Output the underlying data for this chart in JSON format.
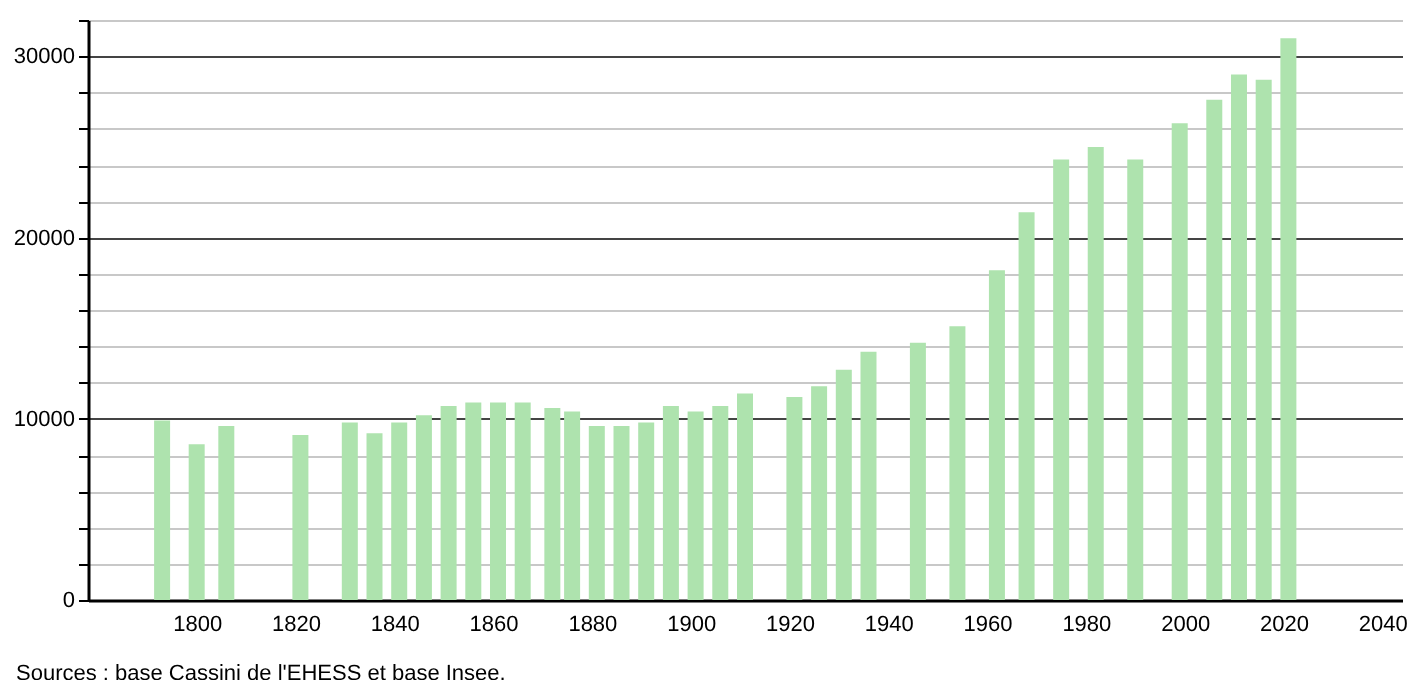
{
  "chart_data": {
    "type": "bar",
    "x": [
      1793,
      1800,
      1806,
      1821,
      1831,
      1836,
      1841,
      1846,
      1851,
      1856,
      1861,
      1866,
      1872,
      1876,
      1881,
      1886,
      1891,
      1896,
      1901,
      1906,
      1911,
      1921,
      1926,
      1931,
      1936,
      1946,
      1954,
      1962,
      1968,
      1975,
      1982,
      1990,
      1999,
      2006,
      2011,
      2016,
      2021
    ],
    "values": [
      9900,
      8600,
      9600,
      9100,
      9800,
      9200,
      9800,
      10200,
      10700,
      10900,
      10900,
      10900,
      10600,
      10400,
      9600,
      9600,
      9800,
      10700,
      10400,
      10700,
      11400,
      11200,
      11800,
      12700,
      13700,
      14200,
      15100,
      18200,
      21400,
      24300,
      25000,
      24300,
      26300,
      27600,
      29000,
      28700,
      31000
    ],
    "color": "#aee3ae",
    "xlim": [
      1778,
      2044
    ],
    "xticks": [
      1800,
      1820,
      1840,
      1860,
      1880,
      1900,
      1920,
      1940,
      1960,
      1980,
      2000,
      2020,
      2040
    ],
    "ylim": [
      0,
      32000
    ],
    "yticks": [
      0,
      {
        "value": 2000,
        "label": null
      },
      {
        "value": 4000,
        "label": null
      },
      {
        "value": 6000,
        "label": null
      },
      {
        "value": 8000,
        "label": null
      },
      10000,
      {
        "value": 12000,
        "label": null
      },
      {
        "value": 14000,
        "label": null
      },
      {
        "value": 16000,
        "label": null
      },
      {
        "value": 18000,
        "label": null
      },
      20000,
      {
        "value": 22000,
        "label": null
      },
      {
        "value": 24000,
        "label": null
      },
      {
        "value": 26000,
        "label": null
      },
      {
        "value": 28000,
        "label": null
      },
      30000,
      {
        "value": 32000,
        "label": null
      }
    ],
    "grid": "y",
    "annotations": [
      "Sources : base Cassini de l'EHESS et base Insee."
    ]
  }
}
